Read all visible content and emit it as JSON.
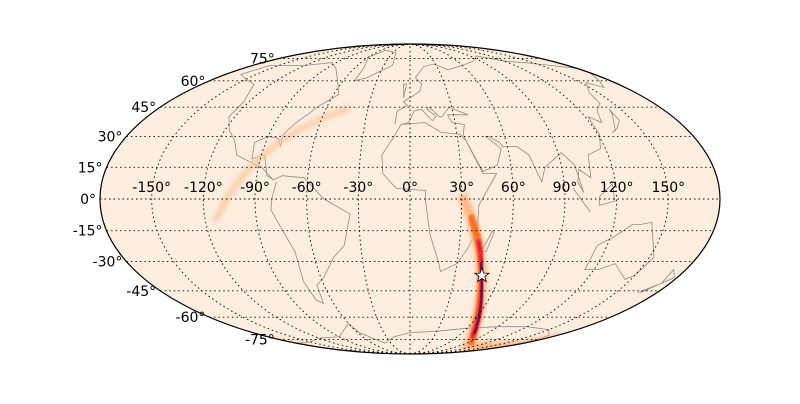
{
  "map": {
    "projection": "mollweide",
    "background_color": "#fdeee0",
    "graticule": {
      "lon_step": 30,
      "lat_step": 15,
      "style": "dotted"
    },
    "lon_labels": [
      "-150°",
      "-120°",
      "-90°",
      "-60°",
      "-30°",
      "0°",
      "30°",
      "60°",
      "90°",
      "120°",
      "150°"
    ],
    "lon_values": [
      -150,
      -120,
      -90,
      -60,
      -30,
      0,
      30,
      60,
      90,
      120,
      150
    ],
    "lat_labels": [
      "75°",
      "60°",
      "45°",
      "30°",
      "15°",
      "0°",
      "-15°",
      "-30°",
      "-45°",
      "-60°",
      "-75°"
    ],
    "lat_values": [
      75,
      60,
      45,
      30,
      15,
      0,
      -15,
      -30,
      -45,
      -60,
      -75
    ],
    "colormap": [
      "#fdeee0",
      "#fdb07a",
      "#f4661f",
      "#e3123a",
      "#7a0c4a"
    ],
    "marker": {
      "symbol": "star-icon",
      "lon": 48,
      "lat": -37,
      "color": "#ffffff"
    }
  }
}
